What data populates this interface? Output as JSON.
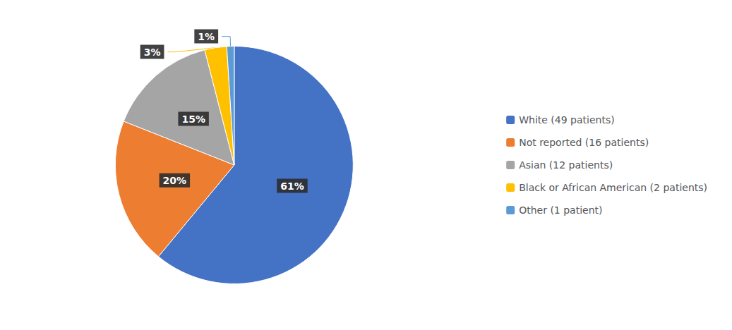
{
  "chart_data": {
    "type": "pie",
    "categories": [
      "White (49 patients)",
      "Not reported (16 patients)",
      "Asian (12 patients)",
      "Black or African American (2 patients)",
      "Other (1 patient)"
    ],
    "values": [
      61,
      20,
      15,
      3,
      1
    ],
    "value_labels": [
      "61%",
      "20%",
      "15%",
      "3%",
      "1%"
    ],
    "colors": [
      "#4472C4",
      "#ED7D31",
      "#A5A5A5",
      "#FFC000",
      "#5B9BD5"
    ],
    "data_labels": true,
    "legend": "right"
  }
}
